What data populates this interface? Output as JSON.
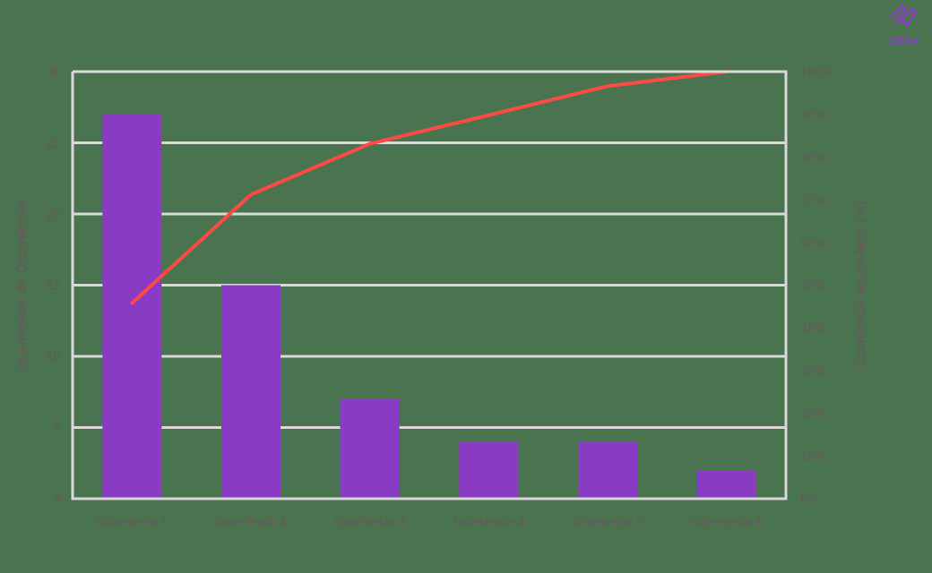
{
  "logo": {
    "text": "zeev",
    "icon": "zeev-logo-icon",
    "color": "#8a3cc2"
  },
  "colors": {
    "background": "#4a7350",
    "bar": "#8a3bc4",
    "line": "#ff4a45",
    "grid": "#d9d9d9",
    "text": "#6e5560"
  },
  "chart_data": {
    "type": "bar+line (pareto)",
    "title": "",
    "categories": [
      "Ocorrência 1",
      "Ocorrência 2",
      "Ocorrência 3",
      "Ocorrência 4",
      "Ocorrência 5",
      "Ocorrência 6"
    ],
    "series": [
      {
        "name": "Quantidade de Ocorrências",
        "type": "bar",
        "axis": "left",
        "values": [
          27,
          15,
          7,
          4,
          4,
          2
        ]
      },
      {
        "name": "Ocorrência acumulado (%)",
        "type": "line",
        "axis": "right",
        "values": [
          45.8,
          71.2,
          83.1,
          89.8,
          96.6,
          100
        ]
      }
    ],
    "ylabel": "Quantidade de Ocorrências",
    "ylabel_right": "Ocorrência acumulado (%)",
    "xlabel": "",
    "ylim": [
      0,
      30
    ],
    "ylim_right": [
      0,
      100
    ],
    "yticks": [
      "0",
      "5",
      "10",
      "15",
      "20",
      "25",
      "30"
    ],
    "yticks_right": [
      "0%",
      "10%",
      "20%",
      "30%",
      "40%",
      "50%",
      "60%",
      "70%",
      "80%",
      "90%",
      "100%"
    ],
    "grid": true,
    "legend": "none"
  }
}
